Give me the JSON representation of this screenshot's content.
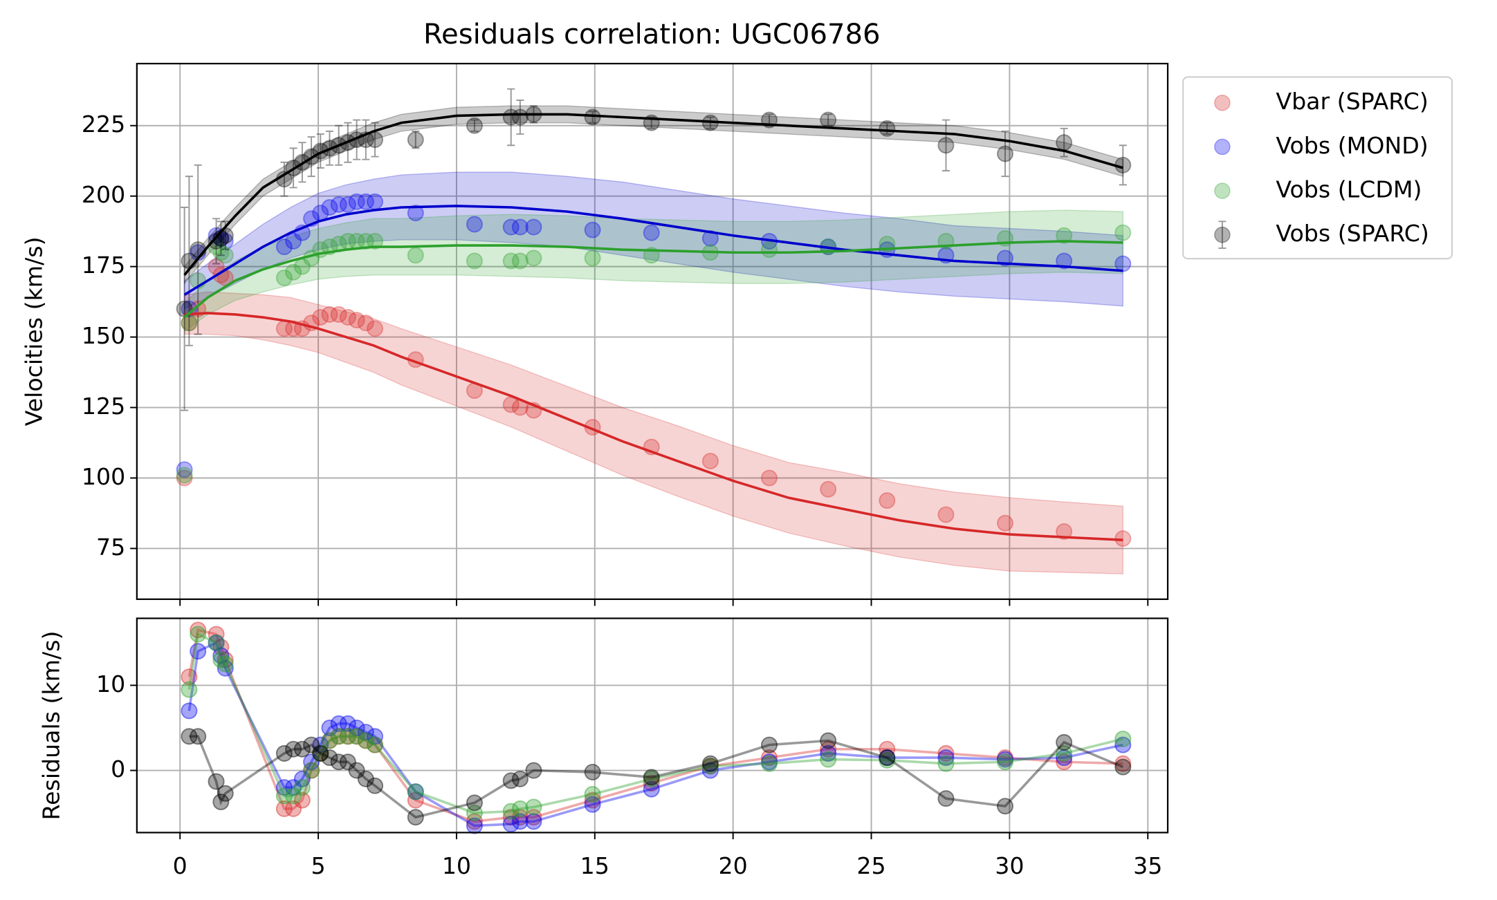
{
  "chart_data": [
    {
      "type": "scatter",
      "title": "Residuals correlation: UGC06786",
      "ylabel": "Velocities (km/s)",
      "xlim": [
        -1.56,
        35.72
      ],
      "ylim": [
        57,
        247
      ],
      "xticks": [
        0,
        5,
        10,
        15,
        20,
        25,
        30,
        35
      ],
      "yticks": [
        75,
        100,
        125,
        150,
        175,
        200,
        225
      ],
      "grid": true,
      "legend": "outside-right",
      "x": [
        0.16,
        0.33,
        0.65,
        1.31,
        1.48,
        1.64,
        3.77,
        4.1,
        4.42,
        4.75,
        5.08,
        5.41,
        5.74,
        6.07,
        6.39,
        6.72,
        7.05,
        8.52,
        10.65,
        11.97,
        12.3,
        12.79,
        14.92,
        17.05,
        19.18,
        21.31,
        23.44,
        25.57,
        27.7,
        29.84,
        31.97,
        34.1
      ],
      "series": [
        {
          "name": "Vbar (SPARC)",
          "color": "#d62728",
          "values": [
            100,
            155,
            160,
            175,
            172,
            171,
            153,
            153,
            153,
            155,
            157,
            158,
            158,
            157,
            156,
            155,
            153,
            142,
            131,
            126,
            125,
            124,
            118,
            111,
            106,
            100,
            96,
            92,
            87,
            84,
            81,
            78.5
          ]
        },
        {
          "name": "Vobs (MOND)",
          "color": "#0000ee",
          "values": [
            103,
            160,
            180,
            186,
            185,
            184,
            182,
            184,
            187,
            192,
            194,
            196,
            197,
            197,
            198,
            198,
            198,
            194,
            190,
            189,
            189,
            189,
            188,
            187,
            185,
            184,
            182,
            181,
            179,
            178,
            177,
            176
          ]
        },
        {
          "name": "Vobs (LCDM)",
          "color": "#2ca02c",
          "values": [
            101,
            155,
            170,
            182,
            180,
            179,
            171,
            173,
            175,
            178,
            181,
            182,
            183,
            184,
            184,
            184,
            184,
            179,
            177,
            177,
            177,
            178,
            178,
            179,
            180,
            181,
            182,
            183,
            184,
            185,
            186,
            187
          ]
        },
        {
          "name": "Vobs (SPARC)",
          "color": "#000000",
          "values": [
            160,
            177,
            181,
            184,
            185,
            186,
            206,
            210,
            212,
            214,
            216,
            217,
            218,
            219,
            220,
            220,
            220,
            220,
            225,
            228,
            228,
            229,
            228,
            226,
            226,
            227,
            227,
            224,
            218,
            215,
            219,
            211
          ],
          "errors": [
            36,
            30,
            30,
            8,
            6,
            5,
            6,
            7,
            7,
            7,
            6,
            6,
            7,
            7,
            7,
            7,
            6,
            3,
            2,
            10,
            6,
            3,
            2,
            2,
            2,
            2,
            2,
            2,
            9,
            8,
            5,
            7
          ]
        }
      ],
      "fit_x": [
        0.16,
        1,
        2,
        3,
        4,
        5,
        6,
        7,
        8,
        10,
        12,
        14,
        16,
        18,
        20,
        22,
        24,
        26,
        28,
        30,
        32,
        34.1
      ],
      "fits": [
        {
          "color": "#d62728",
          "values": [
            158,
            158.5,
            158,
            157,
            155.5,
            153,
            150,
            147,
            143,
            136,
            129,
            121,
            113,
            106,
            99,
            93,
            89,
            85,
            82,
            80,
            79,
            78
          ],
          "lower": [
            151,
            151,
            150.5,
            149,
            147,
            144.5,
            141,
            137.5,
            133,
            125.5,
            118,
            109.5,
            101,
            93.5,
            86.5,
            80.5,
            76,
            72,
            69,
            67,
            66.5,
            66
          ],
          "upper": [
            165,
            166,
            165.5,
            165,
            164,
            161.5,
            159,
            156.5,
            153,
            146.5,
            140,
            132.5,
            125,
            118.5,
            111.5,
            105.5,
            102,
            98,
            95,
            93,
            91.5,
            90
          ]
        },
        {
          "color": "#0000cc",
          "values": [
            165,
            170,
            176,
            182,
            187,
            191,
            193.5,
            195,
            196,
            196.5,
            196,
            194.5,
            192,
            189,
            186,
            183.5,
            181,
            179,
            177,
            176,
            175,
            173.5
          ],
          "lower": [
            160,
            164,
            169,
            174,
            178,
            181,
            183,
            184,
            184.5,
            184.5,
            183.5,
            182,
            179,
            176,
            173,
            170.5,
            168,
            166,
            164.5,
            163.5,
            162.5,
            161
          ],
          "upper": [
            170,
            176,
            183,
            190,
            196,
            201,
            204,
            206,
            207.5,
            208.5,
            208.5,
            207,
            205,
            202,
            199,
            196.5,
            194,
            192,
            189.5,
            188.5,
            187.5,
            186
          ]
        },
        {
          "color": "#2ca02c",
          "values": [
            157,
            164,
            170,
            174,
            177,
            179.5,
            181,
            182,
            182,
            182.5,
            182.5,
            182,
            181,
            180.5,
            180,
            180,
            180.5,
            181.5,
            182.5,
            183.5,
            184,
            183.5
          ],
          "lower": [
            152,
            158,
            163,
            166,
            168.5,
            170.5,
            171.5,
            172,
            172,
            172,
            171.5,
            171,
            170,
            169.5,
            169,
            169,
            169.5,
            170.5,
            171.5,
            172.5,
            173,
            172.5
          ],
          "upper": [
            162,
            170,
            177,
            182,
            185.5,
            188.5,
            190.5,
            192,
            192,
            193,
            193.5,
            193,
            192,
            191.5,
            191,
            191,
            191.5,
            192.5,
            193.5,
            194.5,
            195,
            194.5
          ]
        },
        {
          "color": "#000000",
          "values": [
            172,
            182,
            193,
            203,
            209,
            215,
            219,
            223,
            226,
            228.5,
            229,
            229,
            228,
            227,
            226,
            225,
            224,
            223,
            222,
            219.5,
            216,
            210
          ],
          "lower": [
            169,
            179,
            190,
            200,
            206,
            212,
            216,
            220,
            223,
            225.5,
            226,
            226,
            225,
            224,
            223,
            222,
            221,
            220,
            219,
            216.5,
            213,
            207
          ],
          "upper": [
            175,
            185,
            196,
            206,
            212,
            218,
            222,
            226,
            229,
            231.5,
            232,
            232,
            231,
            230,
            229,
            228,
            227,
            226,
            225,
            222.5,
            219,
            213
          ]
        }
      ]
    },
    {
      "type": "line",
      "ylabel": "Residuals (km/s)",
      "xlim": [
        -1.56,
        35.72
      ],
      "ylim": [
        -7.3,
        17.87
      ],
      "xticks": [
        0,
        5,
        10,
        15,
        20,
        25,
        30,
        35
      ],
      "yticks": [
        0,
        10
      ],
      "grid": true,
      "x": [
        0.16,
        0.33,
        0.65,
        1.31,
        1.48,
        1.64,
        3.77,
        4.1,
        4.42,
        4.75,
        5.08,
        5.41,
        5.74,
        6.07,
        6.39,
        6.72,
        7.05,
        8.52,
        10.65,
        11.97,
        12.3,
        12.79,
        14.92,
        17.05,
        19.18,
        21.31,
        23.44,
        25.57,
        27.7,
        29.84,
        31.97,
        34.1
      ],
      "series": [
        {
          "color": "#d62728",
          "values": [
            null,
            11,
            16.5,
            16,
            14.5,
            13,
            -4.5,
            -4.5,
            -3.5,
            0,
            2,
            3.5,
            4,
            4,
            4,
            3.5,
            3,
            -3.5,
            -6,
            -5.5,
            -5.5,
            -5.5,
            -3.5,
            -1.5,
            0.5,
            1.5,
            2.5,
            2.5,
            2,
            1.5,
            1,
            0.8
          ]
        },
        {
          "color": "#0000ee",
          "values": [
            null,
            7,
            14,
            15,
            13.5,
            12,
            -2,
            -2,
            -1,
            1,
            3,
            5,
            5.5,
            5.5,
            5,
            4.5,
            4,
            -2.5,
            -6.5,
            -6.3,
            -6,
            -6,
            -4,
            -2.2,
            0,
            1,
            2,
            1.5,
            1.5,
            1.3,
            1.5,
            3
          ]
        },
        {
          "color": "#2ca02c",
          "values": [
            null,
            9.5,
            16,
            15,
            13,
            12.5,
            -3,
            -3,
            -2,
            0,
            2,
            3.5,
            4,
            4,
            4,
            3.5,
            3,
            -2.5,
            -5,
            -4.8,
            -4.5,
            -4.3,
            -2.8,
            -1,
            0.5,
            0.8,
            1.3,
            1.2,
            0.8,
            1,
            2,
            3.7
          ]
        },
        {
          "color": "#000000",
          "values": [
            null,
            4,
            4,
            -1.3,
            -3.7,
            -2.7,
            2,
            2.5,
            2.5,
            3,
            2,
            1.5,
            1,
            1,
            0,
            -1,
            -1.8,
            -5.5,
            -3.8,
            -1.2,
            -1,
            0,
            -0.2,
            -0.8,
            0.8,
            3,
            3.5,
            1.5,
            -3.3,
            -4.2,
            3.3,
            0.4
          ]
        }
      ]
    }
  ]
}
